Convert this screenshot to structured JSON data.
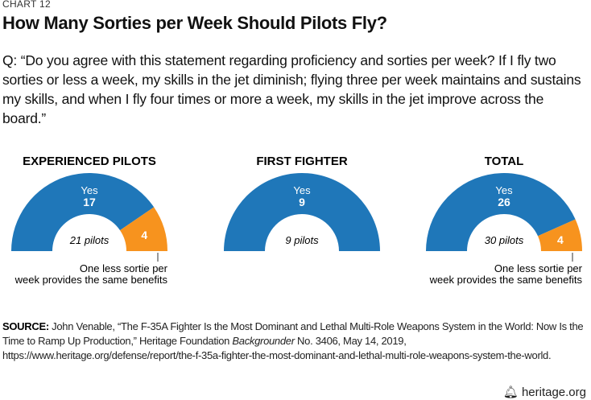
{
  "label": "CHART 12",
  "title": "How Many Sorties per Week Should Pilots Fly?",
  "question": "Q: “Do you agree with this statement regarding proficiency and sorties per week? If I fly two sorties or less a week, my skills in the jet diminish; flying three per week maintains and sustains my skills, and when I fly four times or more a week, my skills in the jet improve across the board.”",
  "source": {
    "prefix": "SOURCE:",
    "text1": " John Venable, “The F-35A Fighter Is the Most Dominant and Lethal Multi-Role Weapons System in the World: Now Is the Time to Ramp Up Production,” Heritage Foundation ",
    "italic": "Backgrounder",
    "text2": " No. 3406, May 14, 2019, https://www.heritage.org/defense/report/the-f-35a-fighter-the-most-dominant-and-lethal-multi-role-weapons-system-the-world."
  },
  "brand": "heritage.org",
  "colors": {
    "yes": "#1f77b9",
    "other": "#f7931e"
  },
  "chart_data": [
    {
      "type": "pie",
      "variant": "half-donut",
      "title": "EXPERIENCED PILOTS",
      "center_label": "21 pilots",
      "slices": [
        {
          "name": "Yes",
          "value": 17
        },
        {
          "name": "One less sortie per week provides the same benefits",
          "value": 4
        }
      ]
    },
    {
      "type": "pie",
      "variant": "half-donut",
      "title": "FIRST FIGHTER",
      "center_label": "9 pilots",
      "slices": [
        {
          "name": "Yes",
          "value": 9
        }
      ]
    },
    {
      "type": "pie",
      "variant": "half-donut",
      "title": "TOTAL",
      "center_label": "30 pilots",
      "slices": [
        {
          "name": "Yes",
          "value": 26
        },
        {
          "name": "One less sortie per week provides the same benefits",
          "value": 4
        }
      ]
    }
  ]
}
